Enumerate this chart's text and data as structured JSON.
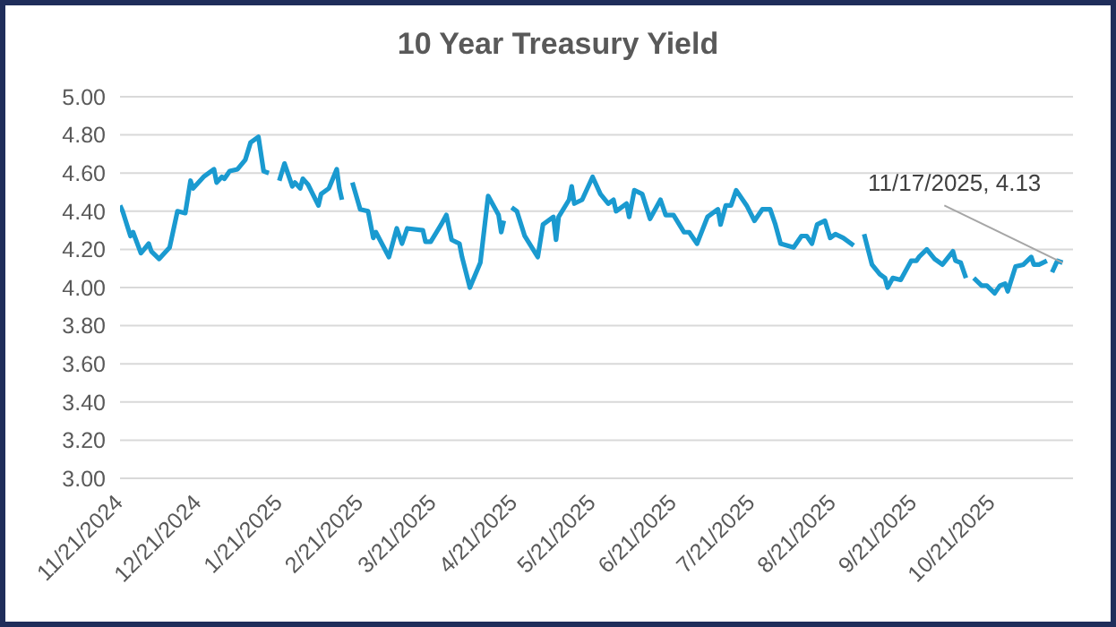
{
  "chart_data": {
    "type": "line",
    "title": "10 Year Treasury Yield",
    "x": [
      "2024-11-21",
      "2024-11-22",
      "2024-11-25",
      "2024-11-26",
      "2024-11-29",
      "2024-12-02",
      "2024-12-03",
      "2024-12-06",
      "2024-12-10",
      "2024-12-13",
      "2024-12-16",
      "2024-12-18",
      "2024-12-19",
      "2024-12-23",
      "2024-12-27",
      "2024-12-28",
      "2024-12-30",
      "2024-12-31",
      "2025-01-02",
      "2025-01-05",
      "2025-01-08",
      "2025-01-10",
      "2025-01-13",
      "2025-01-15",
      "2025-01-17",
      "2025-01-19",
      "2025-01-21",
      "2025-01-23",
      "2025-01-26",
      "2025-01-27",
      "2025-01-29",
      "2025-01-30",
      "2025-02-01",
      "2025-02-05",
      "2025-02-06",
      "2025-02-09",
      "2025-02-12",
      "2025-02-13",
      "2025-02-14",
      "2025-02-16",
      "2025-02-18",
      "2025-02-21",
      "2025-02-24",
      "2025-02-26",
      "2025-02-27",
      "2025-03-04",
      "2025-03-07",
      "2025-03-09",
      "2025-03-11",
      "2025-03-17",
      "2025-03-18",
      "2025-03-20",
      "2025-03-24",
      "2025-03-26",
      "2025-03-28",
      "2025-03-31",
      "2025-04-01",
      "2025-04-04",
      "2025-04-08",
      "2025-04-11",
      "2025-04-15",
      "2025-04-16",
      "2025-04-17",
      "2025-04-19",
      "2025-04-20",
      "2025-04-22",
      "2025-04-25",
      "2025-04-30",
      "2025-05-02",
      "2025-05-06",
      "2025-05-07",
      "2025-05-08",
      "2025-05-12",
      "2025-05-13",
      "2025-05-14",
      "2025-05-17",
      "2025-05-21",
      "2025-05-24",
      "2025-05-27",
      "2025-05-29",
      "2025-05-30",
      "2025-06-03",
      "2025-06-04",
      "2025-06-06",
      "2025-06-09",
      "2025-06-12",
      "2025-06-16",
      "2025-06-18",
      "2025-06-21",
      "2025-06-25",
      "2025-06-27",
      "2025-06-30",
      "2025-07-04",
      "2025-07-08",
      "2025-07-09",
      "2025-07-11",
      "2025-07-13",
      "2025-07-15",
      "2025-07-19",
      "2025-07-22",
      "2025-07-25",
      "2025-07-28",
      "2025-07-30",
      "2025-08-01",
      "2025-08-06",
      "2025-08-09",
      "2025-08-11",
      "2025-08-13",
      "2025-08-15",
      "2025-08-18",
      "2025-08-20",
      "2025-08-22",
      "2025-08-25",
      "2025-08-29",
      "2025-08-31",
      "2025-09-02",
      "2025-09-05",
      "2025-09-08",
      "2025-09-10",
      "2025-09-11",
      "2025-09-13",
      "2025-09-16",
      "2025-09-20",
      "2025-09-22",
      "2025-09-23",
      "2025-09-26",
      "2025-09-29",
      "2025-10-02",
      "2025-10-06",
      "2025-10-07",
      "2025-10-09",
      "2025-10-11",
      "2025-10-13",
      "2025-10-14",
      "2025-10-17",
      "2025-10-19",
      "2025-10-22",
      "2025-10-24",
      "2025-10-26",
      "2025-10-27",
      "2025-10-30",
      "2025-11-02",
      "2025-11-05",
      "2025-11-06",
      "2025-11-08",
      "2025-11-11",
      "2025-11-12",
      "2025-11-13",
      "2025-11-15",
      "2025-11-17"
    ],
    "series": [
      {
        "color": "#1a9ad0",
        "values": [
          4.43,
          4.4,
          4.27,
          4.29,
          4.18,
          4.23,
          4.19,
          4.15,
          4.21,
          4.4,
          4.39,
          4.56,
          4.52,
          4.58,
          4.62,
          4.55,
          4.58,
          4.57,
          4.61,
          4.62,
          4.67,
          4.76,
          4.79,
          4.61,
          4.6,
          null,
          4.56,
          4.65,
          4.53,
          4.55,
          4.52,
          4.57,
          4.54,
          4.43,
          4.49,
          4.52,
          4.62,
          4.52,
          4.46,
          null,
          4.55,
          4.41,
          4.4,
          4.26,
          4.29,
          4.16,
          4.31,
          4.23,
          4.31,
          4.3,
          4.24,
          4.24,
          4.33,
          4.38,
          4.25,
          4.23,
          4.16,
          4.0,
          4.13,
          4.48,
          4.38,
          4.29,
          4.35,
          null,
          4.42,
          4.4,
          4.27,
          4.16,
          4.33,
          4.37,
          4.25,
          4.37,
          4.46,
          4.53,
          4.44,
          4.46,
          4.58,
          4.49,
          4.44,
          4.46,
          4.4,
          4.44,
          4.37,
          4.51,
          4.49,
          4.36,
          4.46,
          4.38,
          4.38,
          4.29,
          4.29,
          4.23,
          4.37,
          4.41,
          4.33,
          4.43,
          4.43,
          4.51,
          4.43,
          4.35,
          4.41,
          4.41,
          4.33,
          4.23,
          4.21,
          4.27,
          4.27,
          4.23,
          4.33,
          4.35,
          4.26,
          4.28,
          4.26,
          4.22,
          null,
          4.28,
          4.12,
          4.07,
          4.05,
          4.0,
          4.05,
          4.04,
          4.14,
          4.14,
          4.16,
          4.2,
          4.15,
          4.12,
          4.19,
          4.14,
          4.13,
          4.05,
          null,
          4.05,
          4.01,
          4.01,
          3.97,
          4.01,
          4.02,
          3.98,
          4.11,
          4.12,
          4.16,
          4.12,
          4.12,
          4.14,
          null,
          4.08,
          4.14,
          4.13
        ]
      }
    ],
    "xlim": [
      "2024-11-21",
      "2025-11-21"
    ],
    "xticks": [
      {
        "value": "2024-11-21",
        "label": "11/21/2024"
      },
      {
        "value": "2024-12-21",
        "label": "12/21/2024"
      },
      {
        "value": "2025-01-21",
        "label": "1/21/2025"
      },
      {
        "value": "2025-02-21",
        "label": "2/21/2025"
      },
      {
        "value": "2025-03-21",
        "label": "3/21/2025"
      },
      {
        "value": "2025-04-21",
        "label": "4/21/2025"
      },
      {
        "value": "2025-05-21",
        "label": "5/21/2025"
      },
      {
        "value": "2025-06-21",
        "label": "6/21/2025"
      },
      {
        "value": "2025-07-21",
        "label": "7/21/2025"
      },
      {
        "value": "2025-08-21",
        "label": "8/21/2025"
      },
      {
        "value": "2025-09-21",
        "label": "9/21/2025"
      },
      {
        "value": "2025-10-21",
        "label": "10/21/2025"
      }
    ],
    "ylim": [
      3,
      5
    ],
    "yticks": [
      {
        "value": 3,
        "label": "3.00"
      },
      {
        "value": 3.2,
        "label": "3.20"
      },
      {
        "value": 3.4,
        "label": "3.40"
      },
      {
        "value": 3.6,
        "label": "3.60"
      },
      {
        "value": 3.8,
        "label": "3.80"
      },
      {
        "value": 4,
        "label": "4.00"
      },
      {
        "value": 4.2,
        "label": "4.20"
      },
      {
        "value": 4.4,
        "label": "4.40"
      },
      {
        "value": 4.6,
        "label": "4.60"
      },
      {
        "value": 4.8,
        "label": "4.80"
      },
      {
        "value": 5,
        "label": "5.00"
      }
    ],
    "grid": "y",
    "legend": false,
    "marker": "none",
    "line_style": "solid",
    "annotations": [
      {
        "text": "11/17/2025, 4.13",
        "x": "2025-11-17",
        "y": 4.13
      }
    ]
  }
}
